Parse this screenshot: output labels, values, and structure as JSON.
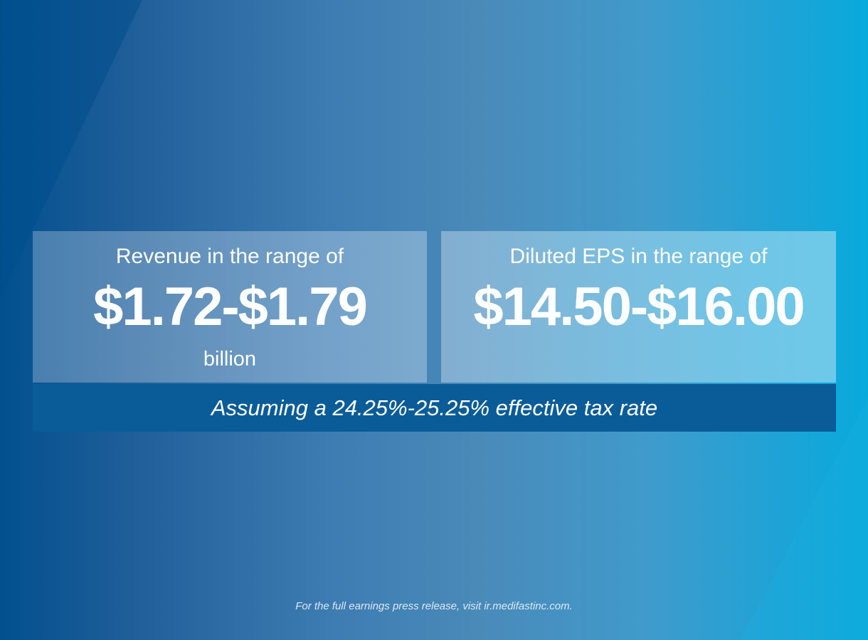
{
  "revenue": {
    "label": "Revenue in the range of",
    "value": "$1.72-$1.79",
    "unit": "billion"
  },
  "eps": {
    "label": "Diluted EPS in the range of",
    "value": "$14.50-$16.00"
  },
  "tax_note": "Assuming a 24.25%-25.25% effective tax rate",
  "footer": "For the full earnings press release, visit ir.medifastinc.com.",
  "colors": {
    "background_left": "#02508f",
    "background_right": "#08aadc",
    "tax_bar": "#0a5c98",
    "text": "#ffffff"
  }
}
